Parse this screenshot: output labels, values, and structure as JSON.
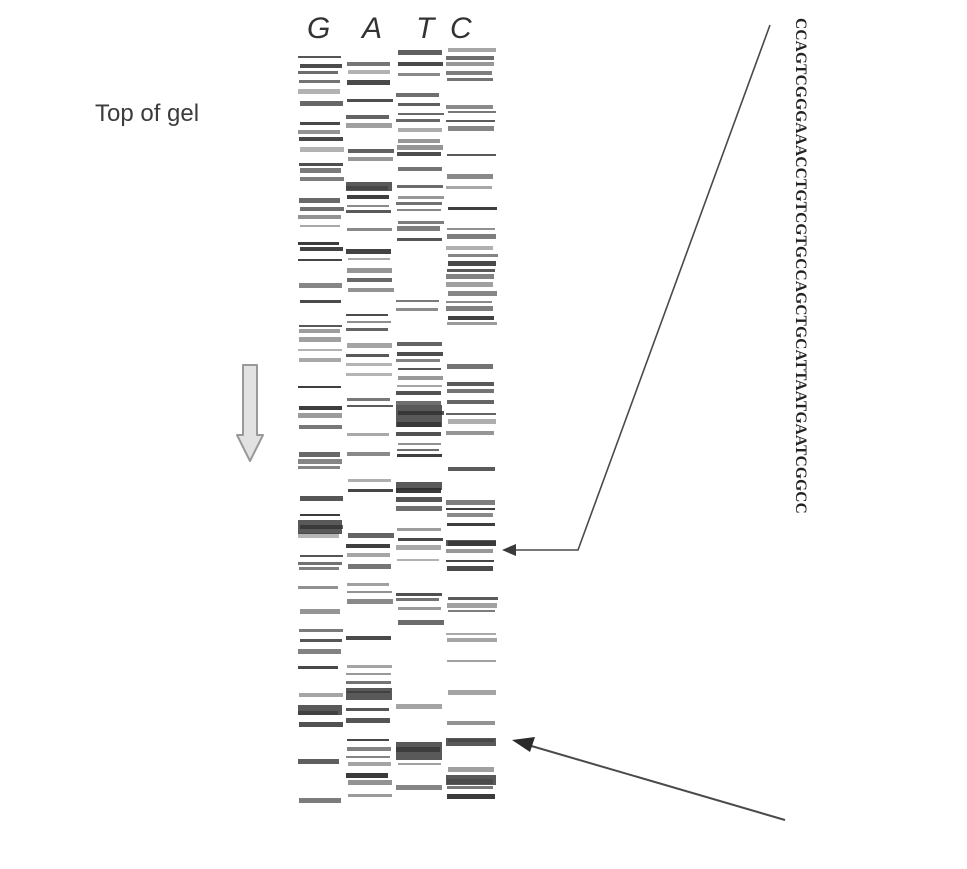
{
  "lane_labels": [
    "G",
    "A",
    "T",
    "C"
  ],
  "top_label": "Top of gel",
  "sequence": "CCAGTCGGGAAACCTGTCGTGCCAGCTGCATTAATGAATCGGCC",
  "colors": {
    "band": "#2f2f2f",
    "line": "#4a4a4a",
    "arrow_outline": "#999999",
    "arrow_fill": "#e2e2e2"
  }
}
